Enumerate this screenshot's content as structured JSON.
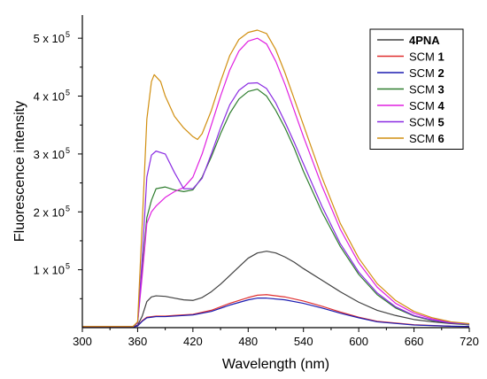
{
  "chart_data": {
    "type": "line",
    "xlabel": "Wavelength (nm)",
    "ylabel": "Fluorescence intensity",
    "xlim": [
      300,
      720
    ],
    "ylim": [
      0,
      540000
    ],
    "xticks": [
      300,
      360,
      420,
      480,
      540,
      600,
      660,
      720
    ],
    "yticks": [
      {
        "value": 100000,
        "label": "1 x 10",
        "exp": "5"
      },
      {
        "value": 200000,
        "label": "2 x 10",
        "exp": "5"
      },
      {
        "value": 300000,
        "label": "3 x 10",
        "exp": "5"
      },
      {
        "value": 400000,
        "label": "4 x 10",
        "exp": "5"
      },
      {
        "value": 500000,
        "label": "5 x 10",
        "exp": "5"
      }
    ],
    "legend_position": "top-right",
    "grid": false,
    "series": [
      {
        "name": "4PNA",
        "prefix": "",
        "suffix": "4PNA",
        "color": "#404040",
        "x": [
          300,
          355,
          360,
          365,
          370,
          375,
          380,
          390,
          400,
          410,
          420,
          430,
          440,
          450,
          460,
          470,
          480,
          490,
          500,
          510,
          520,
          530,
          540,
          560,
          580,
          600,
          620,
          640,
          660,
          680,
          700,
          720
        ],
        "y": [
          2000,
          2000,
          4000,
          20000,
          45000,
          53000,
          55000,
          54000,
          51000,
          48000,
          47000,
          52000,
          62000,
          75000,
          90000,
          105000,
          120000,
          129000,
          132000,
          129000,
          122000,
          113000,
          102000,
          82000,
          62000,
          44000,
          30000,
          21000,
          14000,
          10000,
          7000,
          5000
        ]
      },
      {
        "name": "SCM 1",
        "prefix": "SCM ",
        "suffix": "1",
        "color": "#e03030",
        "x": [
          300,
          355,
          360,
          365,
          370,
          375,
          380,
          390,
          400,
          420,
          440,
          460,
          480,
          490,
          500,
          520,
          540,
          560,
          580,
          600,
          620,
          660,
          700,
          720
        ],
        "y": [
          1000,
          1000,
          3000,
          12000,
          18000,
          19000,
          20000,
          20000,
          21000,
          23000,
          30000,
          42000,
          52000,
          56000,
          57000,
          53000,
          46000,
          37000,
          27000,
          18000,
          11000,
          5000,
          2500,
          2000
        ]
      },
      {
        "name": "SCM 2",
        "prefix": "SCM ",
        "suffix": "2",
        "color": "#1c1cb0",
        "x": [
          300,
          355,
          360,
          365,
          370,
          375,
          380,
          390,
          400,
          420,
          440,
          460,
          480,
          490,
          500,
          520,
          540,
          560,
          580,
          600,
          620,
          660,
          700,
          720
        ],
        "y": [
          1000,
          1000,
          3000,
          11000,
          17000,
          18000,
          19000,
          19000,
          20000,
          22000,
          28000,
          39000,
          48000,
          51000,
          51000,
          48000,
          42000,
          34000,
          25000,
          17000,
          10000,
          4500,
          2500,
          2000
        ]
      },
      {
        "name": "SCM 3",
        "prefix": "SCM ",
        "suffix": "3",
        "color": "#2e7d2e",
        "x": [
          300,
          355,
          360,
          365,
          370,
          375,
          380,
          390,
          400,
          410,
          420,
          430,
          440,
          450,
          460,
          470,
          480,
          490,
          500,
          510,
          520,
          530,
          540,
          560,
          580,
          600,
          620,
          640,
          660,
          680,
          700,
          720
        ],
        "y": [
          2000,
          2000,
          8000,
          100000,
          190000,
          220000,
          240000,
          243000,
          238000,
          235000,
          238000,
          260000,
          295000,
          335000,
          370000,
          395000,
          408000,
          412000,
          400000,
          375000,
          345000,
          310000,
          270000,
          200000,
          140000,
          92000,
          57000,
          34000,
          20000,
          12000,
          8000,
          5000
        ]
      },
      {
        "name": "SCM 4",
        "prefix": "SCM ",
        "suffix": "4",
        "color": "#e020e0",
        "x": [
          300,
          355,
          360,
          365,
          370,
          375,
          380,
          390,
          400,
          410,
          420,
          430,
          440,
          450,
          460,
          470,
          480,
          490,
          500,
          510,
          520,
          530,
          540,
          560,
          580,
          600,
          620,
          640,
          660,
          680,
          700,
          720
        ],
        "y": [
          2000,
          2000,
          8000,
          90000,
          180000,
          200000,
          210000,
          225000,
          235000,
          242000,
          260000,
          300000,
          350000,
          400000,
          445000,
          478000,
          495000,
          500000,
          490000,
          460000,
          420000,
          375000,
          330000,
          245000,
          170000,
          112000,
          70000,
          42000,
          25000,
          15000,
          9000,
          6000
        ]
      },
      {
        "name": "SCM 5",
        "prefix": "SCM ",
        "suffix": "5",
        "color": "#8a2be2",
        "x": [
          300,
          355,
          360,
          365,
          370,
          375,
          380,
          390,
          400,
          410,
          420,
          430,
          440,
          450,
          460,
          470,
          480,
          490,
          500,
          510,
          520,
          530,
          540,
          560,
          580,
          600,
          620,
          640,
          660,
          680,
          700,
          720
        ],
        "y": [
          2000,
          2000,
          8000,
          120000,
          260000,
          298000,
          305000,
          300000,
          268000,
          240000,
          240000,
          258000,
          300000,
          345000,
          385000,
          410000,
          422000,
          423000,
          413000,
          388000,
          355000,
          320000,
          283000,
          210000,
          145000,
          96000,
          60000,
          36000,
          21000,
          13000,
          8000,
          6000
        ]
      },
      {
        "name": "SCM 6",
        "prefix": "SCM ",
        "suffix": "6",
        "color": "#d18f10",
        "x": [
          300,
          355,
          360,
          365,
          370,
          375,
          378,
          385,
          390,
          400,
          410,
          420,
          425,
          430,
          440,
          450,
          460,
          470,
          480,
          490,
          500,
          510,
          520,
          530,
          540,
          560,
          580,
          600,
          620,
          640,
          660,
          680,
          700,
          720
        ],
        "y": [
          2000,
          2000,
          10000,
          180000,
          360000,
          425000,
          437000,
          425000,
          400000,
          365000,
          345000,
          330000,
          325000,
          335000,
          375000,
          425000,
          470000,
          498000,
          510000,
          514000,
          508000,
          480000,
          440000,
          395000,
          350000,
          260000,
          180000,
          120000,
          76000,
          47000,
          28000,
          17000,
          10000,
          7000
        ]
      }
    ]
  }
}
